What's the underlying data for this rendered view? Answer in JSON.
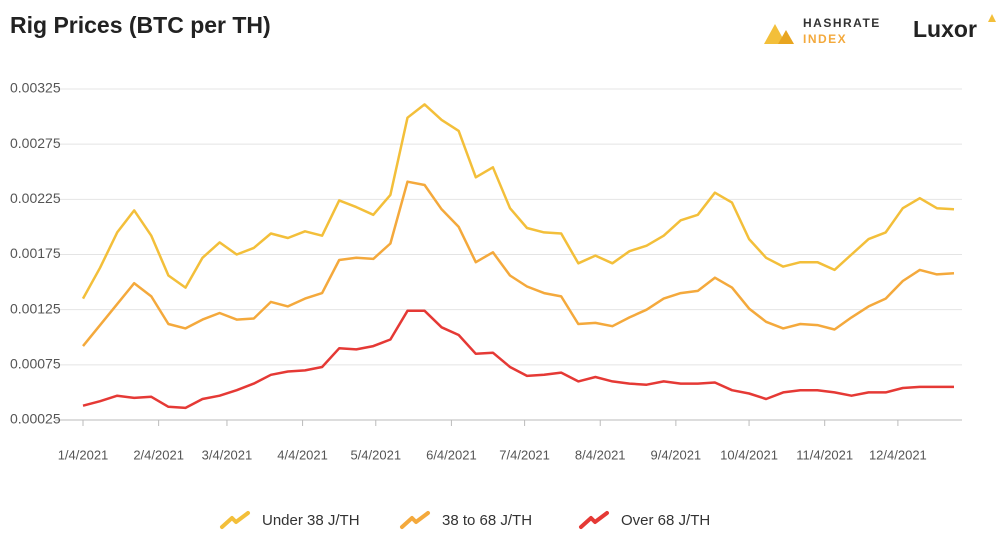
{
  "chart_data": {
    "type": "line",
    "title": "Rig Prices (BTC per TH)",
    "logos": [
      "HASHRATE",
      "INDEX",
      "Luxor"
    ],
    "x": [
      "1/4/2021",
      "1/11/2021",
      "1/18/2021",
      "1/25/2021",
      "2/1/2021",
      "2/8/2021",
      "2/15/2021",
      "2/22/2021",
      "3/1/2021",
      "3/8/2021",
      "3/15/2021",
      "3/22/2021",
      "3/29/2021",
      "4/5/2021",
      "4/12/2021",
      "4/19/2021",
      "4/26/2021",
      "5/3/2021",
      "5/10/2021",
      "5/17/2021",
      "5/24/2021",
      "5/31/2021",
      "6/7/2021",
      "6/14/2021",
      "6/21/2021",
      "6/28/2021",
      "7/5/2021",
      "7/12/2021",
      "7/19/2021",
      "7/26/2021",
      "8/2/2021",
      "8/9/2021",
      "8/16/2021",
      "8/23/2021",
      "8/30/2021",
      "9/6/2021",
      "9/13/2021",
      "9/20/2021",
      "9/27/2021",
      "10/4/2021",
      "10/11/2021",
      "10/18/2021",
      "10/25/2021",
      "11/1/2021",
      "11/8/2021",
      "11/15/2021",
      "11/22/2021",
      "11/29/2021",
      "12/6/2021",
      "12/13/2021",
      "12/20/2021",
      "12/27/2021"
    ],
    "series": [
      {
        "name": "Under 38 J/TH",
        "color": "#f3bf3a",
        "values": [
          0.00135,
          0.00163,
          0.00195,
          0.00215,
          0.00192,
          0.00156,
          0.00145,
          0.00172,
          0.00186,
          0.00175,
          0.00181,
          0.00194,
          0.0019,
          0.00196,
          0.00192,
          0.00224,
          0.00218,
          0.00211,
          0.00229,
          0.00299,
          0.00311,
          0.00297,
          0.00287,
          0.00245,
          0.00254,
          0.00217,
          0.00199,
          0.00195,
          0.00194,
          0.00167,
          0.00174,
          0.00167,
          0.00178,
          0.00183,
          0.00192,
          0.00206,
          0.00211,
          0.00231,
          0.00222,
          0.00189,
          0.00172,
          0.00164,
          0.00168,
          0.00168,
          0.00161,
          0.00175,
          0.00189,
          0.00195,
          0.00217,
          0.00226,
          0.00217,
          0.00216
        ]
      },
      {
        "name": "38 to 68 J/TH",
        "color": "#f4a93c",
        "values": [
          0.00092,
          0.00111,
          0.0013,
          0.00149,
          0.00137,
          0.00112,
          0.00108,
          0.00116,
          0.00122,
          0.00116,
          0.00117,
          0.00132,
          0.00128,
          0.00135,
          0.0014,
          0.0017,
          0.00172,
          0.00171,
          0.00185,
          0.00241,
          0.00238,
          0.00216,
          0.002,
          0.00168,
          0.00177,
          0.00156,
          0.00146,
          0.0014,
          0.00137,
          0.00112,
          0.00113,
          0.0011,
          0.00118,
          0.00125,
          0.00135,
          0.0014,
          0.00142,
          0.00154,
          0.00145,
          0.00126,
          0.00114,
          0.00108,
          0.00112,
          0.00111,
          0.00107,
          0.00118,
          0.00128,
          0.00135,
          0.00151,
          0.00161,
          0.00157,
          0.00158
        ]
      },
      {
        "name": "Over 68 J/TH",
        "color": "#e53935",
        "values": [
          0.00038,
          0.00042,
          0.00047,
          0.00045,
          0.00046,
          0.00037,
          0.00036,
          0.00044,
          0.00047,
          0.00052,
          0.00058,
          0.00066,
          0.00069,
          0.0007,
          0.00073,
          0.0009,
          0.00089,
          0.00092,
          0.00098,
          0.00124,
          0.00124,
          0.00109,
          0.00102,
          0.00085,
          0.00086,
          0.00073,
          0.00065,
          0.00066,
          0.00068,
          0.0006,
          0.00064,
          0.0006,
          0.00058,
          0.00057,
          0.0006,
          0.00058,
          0.00058,
          0.00059,
          0.00052,
          0.00049,
          0.00044,
          0.0005,
          0.00052,
          0.00052,
          0.0005,
          0.00047,
          0.0005,
          0.0005,
          0.00054,
          0.00055,
          0.00055,
          0.00055
        ]
      }
    ],
    "xlim": [
      "1/4/2021",
      "12/27/2021"
    ],
    "xticks": [
      "1/4/2021",
      "2/4/2021",
      "3/4/2021",
      "4/4/2021",
      "5/4/2021",
      "6/4/2021",
      "7/4/2021",
      "8/4/2021",
      "9/4/2021",
      "10/4/2021",
      "11/4/2021",
      "12/4/2021"
    ],
    "ylim": [
      0.00025,
      0.00325
    ],
    "yticks": [
      0.00025,
      0.00075,
      0.00125,
      0.00175,
      0.00225,
      0.00275,
      0.00325
    ],
    "grid": true,
    "legend": "bottom"
  }
}
